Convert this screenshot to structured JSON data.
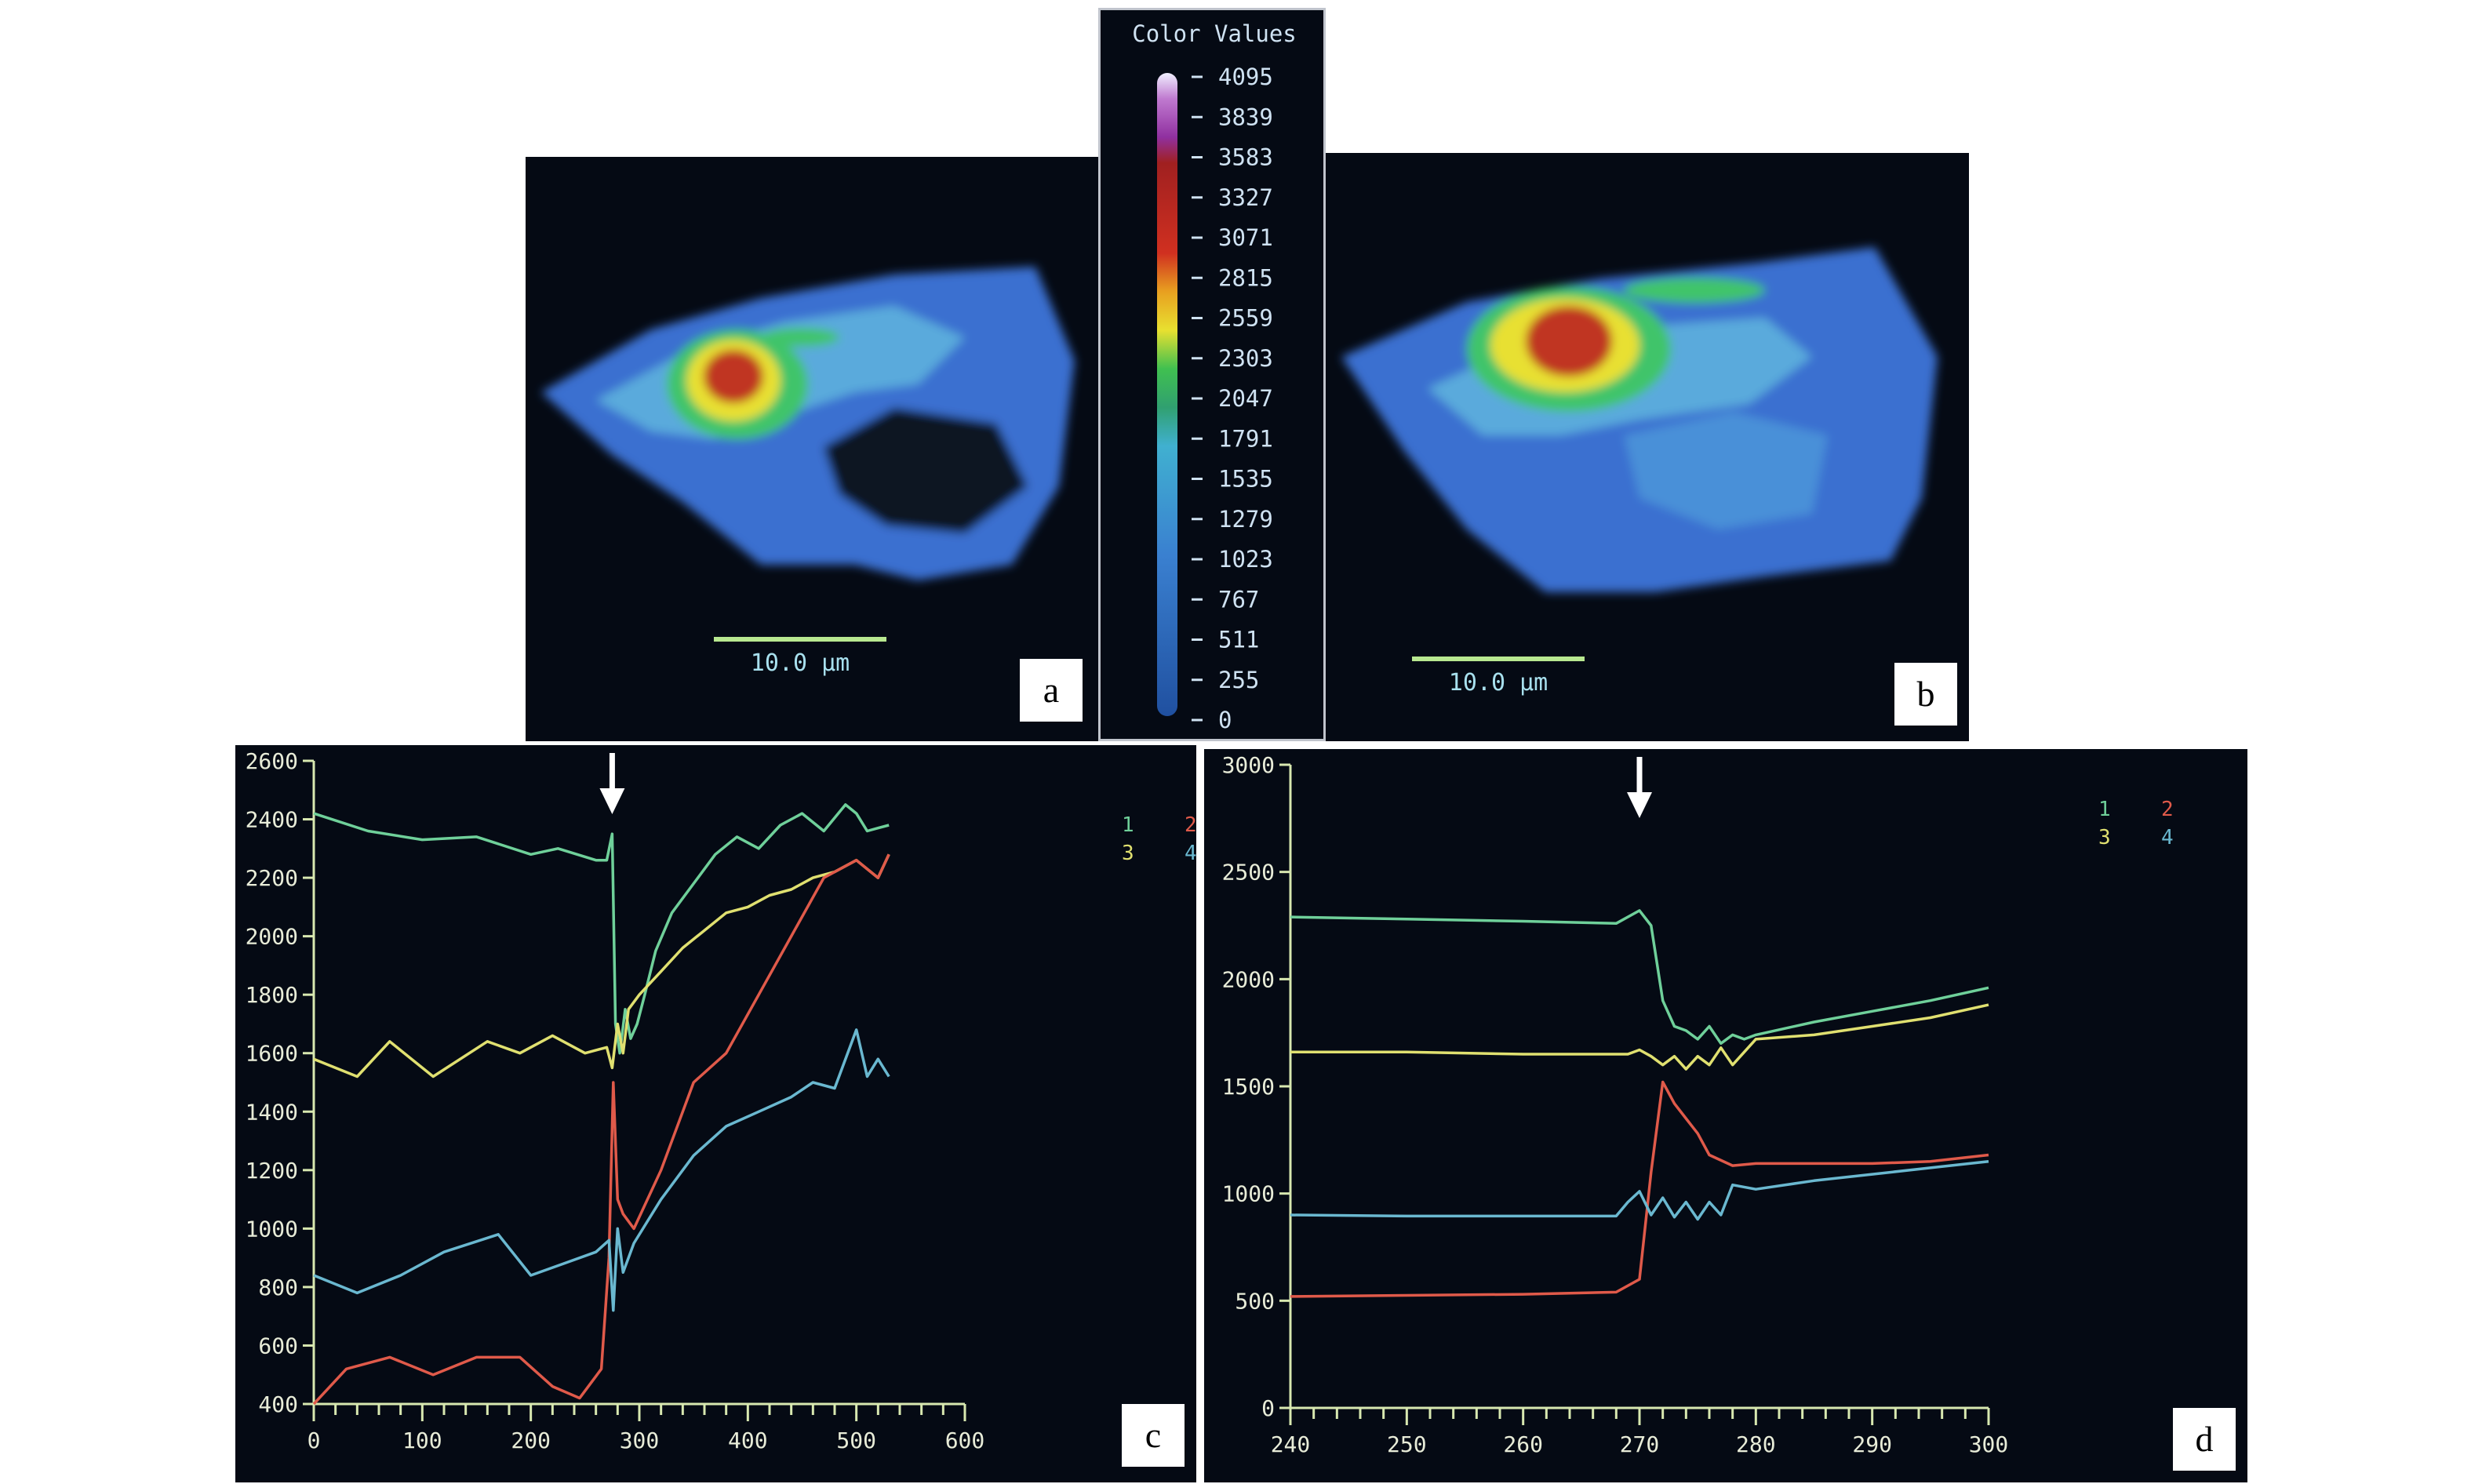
{
  "panels": {
    "a": {
      "tag": "a",
      "scale_label": "10.0 μm"
    },
    "b": {
      "tag": "b",
      "scale_label": "10.0 μm"
    },
    "c": {
      "tag": "c"
    },
    "d": {
      "tag": "d"
    }
  },
  "colorbar": {
    "title": "Color Values",
    "ticks": [
      "4095",
      "3839",
      "3583",
      "3327",
      "3071",
      "2815",
      "2559",
      "2303",
      "2047",
      "1791",
      "1535",
      "1279",
      "1023",
      "767",
      "511",
      "255",
      "0"
    ]
  },
  "colors": {
    "green": "#6fd09a",
    "yellow": "#e0e070",
    "red": "#e05a4a",
    "cyan": "#6ab8d0",
    "axis": "#d8e8b0",
    "background": "#050a14",
    "arrow": "#ffffff"
  },
  "chart_data": [
    {
      "id": "c",
      "type": "line",
      "xlim": [
        0,
        600
      ],
      "ylim": [
        400,
        2600
      ],
      "xticks": [
        0,
        100,
        200,
        300,
        400,
        500,
        600
      ],
      "yticks": [
        400,
        600,
        800,
        1000,
        1200,
        1400,
        1600,
        1800,
        2000,
        2200,
        2400,
        2600
      ],
      "legend": [
        "1",
        "2",
        "3",
        "4"
      ],
      "annotation": {
        "type": "arrow",
        "x": 275
      },
      "series": [
        {
          "color": "green",
          "x": [
            0,
            50,
            100,
            150,
            200,
            225,
            260,
            270,
            275,
            278,
            282,
            287,
            292,
            298,
            305,
            315,
            330,
            350,
            370,
            390,
            410,
            430,
            450,
            470,
            490,
            500,
            510,
            520,
            530
          ],
          "y": [
            2420,
            2360,
            2330,
            2340,
            2280,
            2300,
            2260,
            2260,
            2350,
            1700,
            1600,
            1750,
            1650,
            1700,
            1800,
            1950,
            2080,
            2180,
            2280,
            2340,
            2300,
            2380,
            2420,
            2360,
            2450,
            2420,
            2360,
            2370,
            2380
          ]
        },
        {
          "color": "yellow",
          "x": [
            0,
            40,
            70,
            110,
            160,
            190,
            220,
            250,
            270,
            275,
            280,
            285,
            290,
            300,
            320,
            340,
            360,
            380,
            400,
            420,
            440,
            460,
            480,
            500,
            520,
            530
          ],
          "y": [
            1580,
            1520,
            1640,
            1520,
            1640,
            1600,
            1660,
            1600,
            1620,
            1550,
            1700,
            1600,
            1750,
            1800,
            1880,
            1960,
            2020,
            2080,
            2100,
            2140,
            2160,
            2200,
            2220,
            2260,
            2200,
            2280
          ]
        },
        {
          "color": "red",
          "x": [
            0,
            30,
            70,
            110,
            150,
            190,
            220,
            245,
            265,
            272,
            276,
            280,
            285,
            295,
            320,
            350,
            380,
            410,
            440,
            470,
            500,
            520,
            530
          ],
          "y": [
            400,
            520,
            560,
            500,
            560,
            560,
            460,
            420,
            520,
            900,
            1500,
            1100,
            1050,
            1000,
            1200,
            1500,
            1600,
            1800,
            2000,
            2200,
            2260,
            2200,
            2280
          ]
        },
        {
          "color": "cyan",
          "x": [
            0,
            40,
            80,
            120,
            170,
            200,
            230,
            260,
            272,
            276,
            280,
            285,
            295,
            320,
            350,
            380,
            410,
            440,
            460,
            480,
            500,
            510,
            520,
            530
          ],
          "y": [
            840,
            780,
            840,
            920,
            980,
            840,
            880,
            920,
            960,
            720,
            1000,
            850,
            950,
            1100,
            1250,
            1350,
            1400,
            1450,
            1500,
            1480,
            1680,
            1520,
            1580,
            1520
          ]
        }
      ]
    },
    {
      "id": "d",
      "type": "line",
      "xlim": [
        240,
        300
      ],
      "ylim": [
        0,
        3000
      ],
      "xticks": [
        240,
        250,
        260,
        270,
        280,
        290,
        300
      ],
      "yticks": [
        0,
        500,
        1000,
        1500,
        2000,
        2500,
        3000
      ],
      "legend": [
        "1",
        "2",
        "3",
        "4"
      ],
      "annotation": {
        "type": "arrow",
        "x": 270
      },
      "series": [
        {
          "color": "green",
          "x": [
            240,
            250,
            260,
            268,
            270,
            271,
            272,
            273,
            274,
            275,
            276,
            277,
            278,
            279,
            280,
            285,
            290,
            295,
            300
          ],
          "y": [
            2290,
            2280,
            2270,
            2260,
            2320,
            2250,
            1900,
            1780,
            1760,
            1720,
            1780,
            1700,
            1740,
            1720,
            1740,
            1800,
            1850,
            1900,
            1960
          ]
        },
        {
          "color": "yellow",
          "x": [
            240,
            250,
            260,
            269,
            270,
            271,
            272,
            273,
            274,
            275,
            276,
            277,
            278,
            280,
            285,
            290,
            295,
            300
          ],
          "y": [
            1660,
            1660,
            1650,
            1650,
            1670,
            1640,
            1600,
            1640,
            1580,
            1640,
            1600,
            1680,
            1600,
            1720,
            1740,
            1780,
            1820,
            1880
          ]
        },
        {
          "color": "red",
          "x": [
            240,
            250,
            260,
            268,
            270,
            271,
            272,
            273,
            274,
            275,
            276,
            278,
            280,
            285,
            290,
            295,
            300
          ],
          "y": [
            520,
            525,
            530,
            540,
            600,
            1100,
            1520,
            1420,
            1350,
            1280,
            1180,
            1130,
            1140,
            1140,
            1140,
            1150,
            1180
          ]
        },
        {
          "color": "cyan",
          "x": [
            240,
            250,
            260,
            268,
            269,
            270,
            271,
            272,
            273,
            274,
            275,
            276,
            277,
            278,
            280,
            285,
            290,
            295,
            300
          ],
          "y": [
            900,
            895,
            895,
            895,
            960,
            1010,
            900,
            980,
            890,
            960,
            880,
            960,
            900,
            1040,
            1020,
            1060,
            1090,
            1120,
            1150
          ]
        }
      ]
    }
  ]
}
